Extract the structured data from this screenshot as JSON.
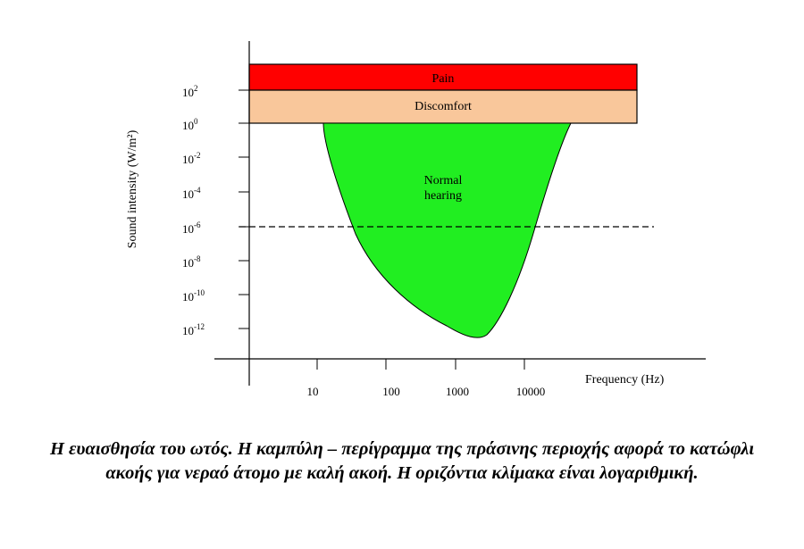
{
  "chart_data": {
    "type": "area",
    "xlabel": "Frequency (Hz)",
    "ylabel": "Sound intensity (W/m²)",
    "x_scale": "log",
    "y_scale": "log",
    "x_ticks": [
      "10",
      "100",
      "1000",
      "10000"
    ],
    "y_ticks": [
      {
        "base": "10",
        "exp": "2"
      },
      {
        "base": "10",
        "exp": "0"
      },
      {
        "base": "10",
        "exp": "-2"
      },
      {
        "base": "10",
        "exp": "-4"
      },
      {
        "base": "10",
        "exp": "-6"
      },
      {
        "base": "10",
        "exp": "-8"
      },
      {
        "base": "10",
        "exp": "-10"
      },
      {
        "base": "10",
        "exp": "-12"
      }
    ],
    "bands": [
      {
        "label": "Pain",
        "color": "#ff0000",
        "y_from": 100,
        "y_to": 10000,
        "x_from": 1,
        "x_to": 100000
      },
      {
        "label": "Discomfort",
        "color": "#f9c79b",
        "y_from": 1,
        "y_to": 100,
        "x_from": 1,
        "x_to": 100000
      }
    ],
    "region": {
      "label_lines": [
        "Normal",
        "hearing"
      ],
      "color": "#21ee21",
      "top_intensity": 1,
      "threshold_curve": [
        {
          "x": 12,
          "y": 1
        },
        {
          "x": 20,
          "y": 0.0001
        },
        {
          "x": 40,
          "y": 1e-06
        },
        {
          "x": 100,
          "y": 1e-08
        },
        {
          "x": 300,
          "y": 1e-10
        },
        {
          "x": 1000,
          "y": 1e-12
        },
        {
          "x": 2000,
          "y": 3e-13
        },
        {
          "x": 4000,
          "y": 1e-11
        },
        {
          "x": 8000,
          "y": 1e-08
        },
        {
          "x": 10000,
          "y": 1e-06
        },
        {
          "x": 15000,
          "y": 0.0001
        },
        {
          "x": 25000,
          "y": 1
        }
      ]
    },
    "reference_line": {
      "y": 1e-06,
      "style": "dashed"
    }
  },
  "caption": "Η ευαισθησία του ωτός. Η καμπύλη – περίγραμμα της πράσινης περιοχής αφορά το κατώφλι ακοής για νεραό άτομο με καλή ακοή. Η οριζόντια κλίμακα είναι λογαριθμική."
}
